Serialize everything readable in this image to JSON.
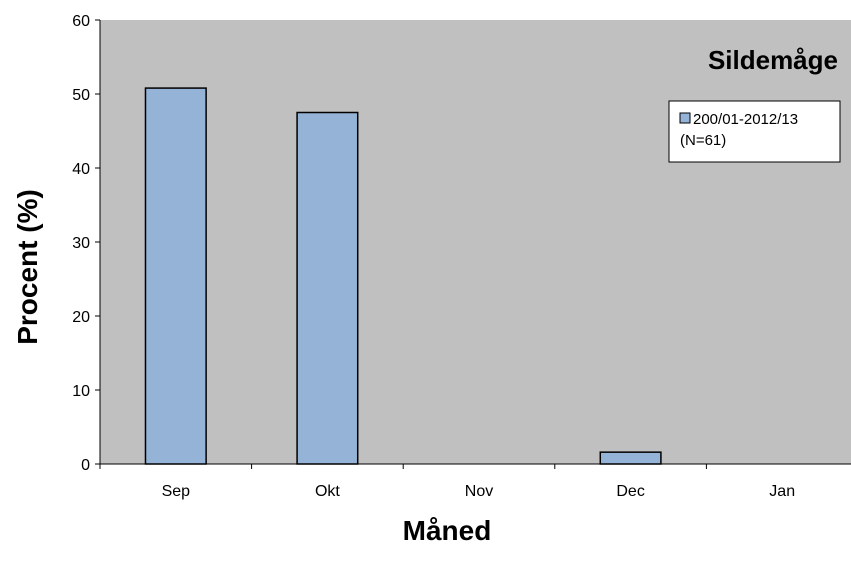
{
  "chart_data": {
    "type": "bar",
    "title": "Sildemåge",
    "xlabel": "Måned",
    "ylabel": "Procent (%)",
    "categories": [
      "Sep",
      "Okt",
      "Nov",
      "Dec",
      "Jan"
    ],
    "series": [
      {
        "name": "200/01-2012/13",
        "name_line2": "(N=61)",
        "values": [
          50.8,
          47.5,
          0,
          1.6,
          0
        ]
      }
    ],
    "ylim": [
      0,
      60
    ],
    "yticks": [
      0,
      10,
      20,
      30,
      40,
      50,
      60
    ],
    "grid": false,
    "legend_position": "top-right",
    "colors": {
      "plot_background": "#c0c0c0",
      "bar_fill": "#95b3d7",
      "bar_stroke": "#000000"
    }
  }
}
